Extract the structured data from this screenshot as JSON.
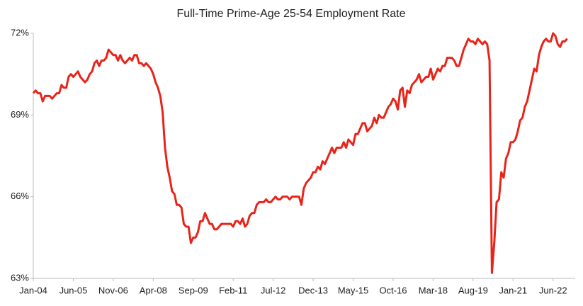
{
  "chart_data": {
    "type": "line",
    "title": "Full-Time Prime-Age 25-54 Employment Rate",
    "categories": [
      "Jan-04",
      null,
      null,
      null,
      null,
      null,
      null,
      null,
      null,
      null,
      null,
      null,
      null,
      null,
      null,
      null,
      null,
      "Jun-05",
      null,
      null,
      null,
      null,
      null,
      null,
      null,
      null,
      null,
      null,
      null,
      null,
      null,
      null,
      null,
      null,
      "Nov-06",
      null,
      null,
      null,
      null,
      null,
      null,
      null,
      null,
      null,
      null,
      null,
      null,
      null,
      null,
      null,
      null,
      "Apr-08",
      null,
      null,
      null,
      null,
      null,
      null,
      null,
      null,
      null,
      null,
      null,
      null,
      null,
      null,
      null,
      null,
      "Sep-09",
      null,
      null,
      null,
      null,
      null,
      null,
      null,
      null,
      null,
      null,
      null,
      null,
      null,
      null,
      null,
      null,
      "Feb-11",
      null,
      null,
      null,
      null,
      null,
      null,
      null,
      null,
      null,
      null,
      null,
      null,
      null,
      null,
      null,
      null,
      "Jul-12",
      null,
      null,
      null,
      null,
      null,
      null,
      null,
      null,
      null,
      null,
      null,
      null,
      null,
      null,
      null,
      null,
      "Dec-13",
      null,
      null,
      null,
      null,
      null,
      null,
      null,
      null,
      null,
      null,
      null,
      null,
      null,
      null,
      null,
      null,
      "May-15",
      null,
      null,
      null,
      null,
      null,
      null,
      null,
      null,
      null,
      null,
      null,
      null,
      null,
      null,
      null,
      null,
      "Oct-16",
      null,
      null,
      null,
      null,
      null,
      null,
      null,
      null,
      null,
      null,
      null,
      null,
      null,
      null,
      null,
      null,
      "Mar-18",
      null,
      null,
      null,
      null,
      null,
      null,
      null,
      null,
      null,
      null,
      null,
      null,
      null,
      null,
      null,
      null,
      "Aug-19",
      null,
      null,
      null,
      null,
      null,
      null,
      null,
      null,
      null,
      null,
      null,
      null,
      null,
      null,
      null,
      null,
      "Jan-21",
      null,
      null,
      null,
      null,
      null,
      null,
      null,
      null,
      null,
      null,
      null,
      null,
      null,
      null,
      null,
      null,
      "Jun-22",
      null,
      null,
      null,
      null,
      null,
      null
    ],
    "series": [
      {
        "name": "Full-Time Prime-Age 25-54 Employment Rate",
        "color": "#e8241a",
        "values": [
          69.8,
          69.9,
          69.8,
          69.8,
          69.5,
          69.7,
          69.7,
          69.7,
          69.6,
          69.7,
          69.8,
          69.8,
          70.1,
          70.0,
          70.0,
          70.4,
          70.5,
          70.4,
          70.5,
          70.6,
          70.4,
          70.3,
          70.2,
          70.3,
          70.5,
          70.6,
          70.9,
          71.0,
          70.8,
          71.0,
          71.0,
          71.1,
          71.4,
          71.3,
          71.2,
          71.2,
          71.0,
          71.2,
          71.0,
          70.9,
          71.0,
          71.1,
          71.0,
          71.2,
          71.2,
          70.9,
          70.9,
          70.8,
          70.9,
          70.8,
          70.7,
          70.5,
          70.2,
          70.0,
          69.7,
          69.1,
          67.8,
          67.1,
          66.7,
          66.2,
          66.1,
          65.7,
          65.7,
          65.6,
          65.0,
          64.9,
          64.9,
          64.3,
          64.5,
          64.5,
          64.7,
          65.1,
          65.1,
          65.4,
          65.2,
          65.0,
          65.0,
          64.8,
          64.8,
          64.9,
          65.0,
          65.0,
          65.0,
          65.0,
          65.0,
          64.9,
          65.1,
          65.1,
          65.0,
          65.2,
          64.9,
          65.0,
          65.3,
          65.4,
          65.4,
          65.7,
          65.8,
          65.8,
          65.8,
          65.9,
          65.8,
          65.8,
          65.9,
          66.0,
          65.9,
          65.9,
          66.0,
          66.0,
          66.0,
          65.9,
          66.0,
          66.0,
          66.0,
          66.0,
          65.7,
          66.3,
          66.5,
          66.6,
          66.7,
          66.9,
          66.9,
          67.1,
          67.0,
          67.3,
          67.2,
          67.4,
          67.6,
          67.8,
          67.6,
          67.8,
          67.8,
          67.8,
          68.0,
          67.8,
          68.1,
          68.0,
          67.9,
          68.3,
          68.3,
          68.5,
          68.7,
          68.7,
          68.4,
          68.5,
          68.6,
          68.9,
          68.7,
          69.0,
          68.9,
          68.9,
          69.1,
          69.3,
          69.4,
          69.6,
          69.5,
          69.2,
          69.9,
          70.0,
          69.3,
          69.9,
          69.8,
          70.1,
          70.2,
          70.3,
          70.5,
          70.2,
          70.3,
          70.4,
          70.4,
          70.7,
          70.3,
          70.5,
          70.7,
          70.6,
          70.8,
          70.8,
          71.1,
          71.1,
          71.1,
          71.0,
          70.8,
          70.8,
          71.1,
          71.4,
          71.6,
          71.8,
          71.7,
          71.7,
          71.6,
          71.8,
          71.7,
          71.6,
          71.7,
          71.6,
          71.0,
          63.2,
          64.3,
          65.8,
          65.9,
          66.9,
          66.7,
          67.4,
          67.6,
          68.0,
          68.0,
          68.1,
          68.4,
          68.8,
          68.9,
          69.3,
          69.5,
          69.9,
          70.3,
          70.7,
          70.6,
          71.2,
          71.5,
          71.7,
          71.8,
          71.7,
          71.7,
          72.0,
          71.9,
          71.6,
          71.5,
          71.7,
          71.7,
          71.8
        ]
      }
    ],
    "ylim": [
      63,
      72
    ],
    "yticks": [
      {
        "value": 63,
        "label": "63%"
      },
      {
        "value": 66,
        "label": "66%"
      },
      {
        "value": 69,
        "label": "69%"
      },
      {
        "value": 72,
        "label": "72%"
      }
    ],
    "grid": false
  }
}
